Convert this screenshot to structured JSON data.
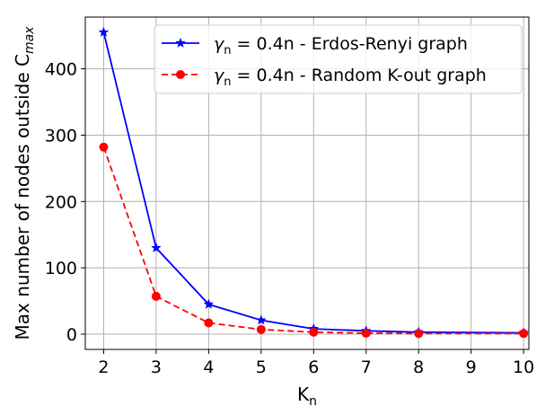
{
  "chart_data": {
    "type": "line",
    "xlabel": {
      "main": "K",
      "sub": "n"
    },
    "ylabel": {
      "prefix": "Max number of nodes outside C",
      "sub": "max"
    },
    "xlim": [
      1.65,
      10.1
    ],
    "ylim": [
      -23,
      478
    ],
    "xticks": [
      2,
      3,
      4,
      5,
      6,
      7,
      8,
      9,
      10
    ],
    "yticks": [
      0,
      100,
      200,
      300,
      400
    ],
    "grid": true,
    "legend_position": "top-right",
    "x": [
      2,
      3,
      4,
      5,
      6,
      7,
      8,
      9,
      10
    ],
    "series": [
      {
        "name": "0.4n - Erdos-Renyi graph",
        "legend_prefix": {
          "symbol": "γ",
          "sub": "n",
          "eq": " = "
        },
        "values": [
          455,
          130,
          45,
          21,
          8,
          5,
          3,
          null,
          2
        ],
        "color": "#0000ff",
        "linestyle": "solid",
        "marker": "star"
      },
      {
        "name": "0.4n - Random K-out graph",
        "legend_prefix": {
          "symbol": "γ",
          "sub": "n",
          "eq": " = "
        },
        "values": [
          282,
          57,
          17,
          7,
          3,
          1.5,
          1,
          null,
          1
        ],
        "color": "#ff0000",
        "linestyle": "dashed",
        "marker": "circle"
      }
    ]
  }
}
